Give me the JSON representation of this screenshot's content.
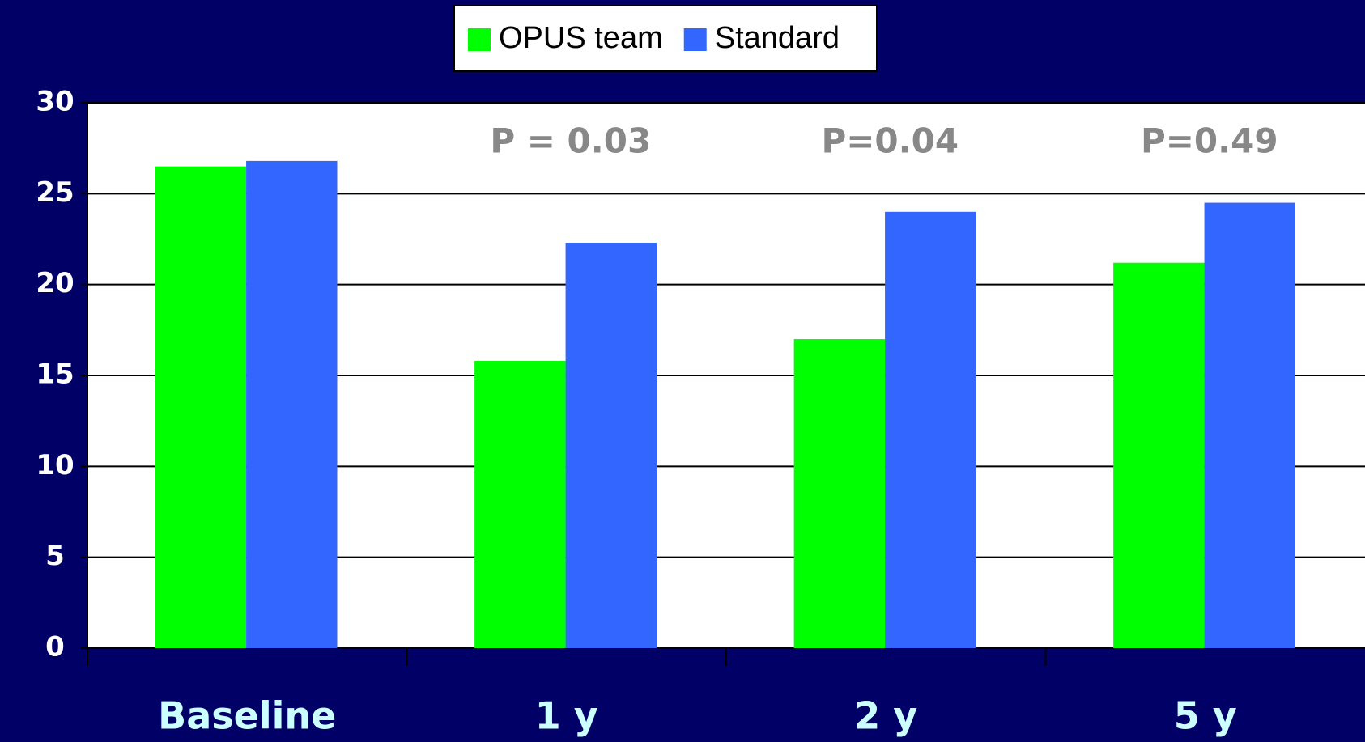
{
  "chart_data": {
    "type": "bar",
    "categories": [
      "Baseline",
      "1 y",
      "2 y",
      "5 y"
    ],
    "series": [
      {
        "name": "OPUS team",
        "color": "#00ff00",
        "values": [
          26.5,
          15.8,
          17.0,
          21.2
        ]
      },
      {
        "name": "Standard",
        "color": "#3366ff",
        "values": [
          26.8,
          22.3,
          24.0,
          24.5
        ]
      }
    ],
    "annotations": [
      null,
      "P = 0.03",
      "P=0.04",
      "P=0.49"
    ],
    "ylim": [
      0,
      30
    ],
    "yticks": [
      0,
      5,
      10,
      15,
      20,
      25,
      30
    ],
    "grid": true,
    "legend": "top"
  }
}
